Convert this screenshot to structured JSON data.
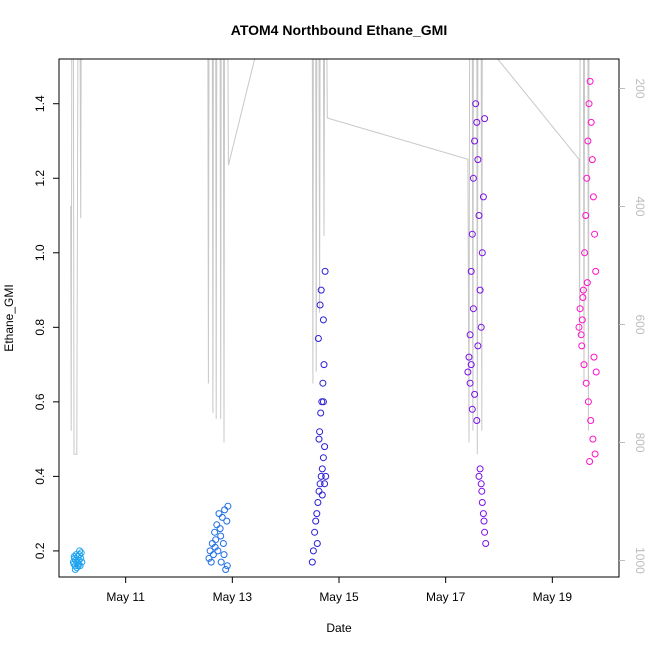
{
  "chart_data": {
    "type": "scatter",
    "title": "ATOM4 Northbound Ethane_GMI",
    "xlabel": "Date",
    "ylabel": "Ethane_GMI",
    "xlim": [
      "2018-05-09T18:00",
      "2018-05-20T06:00"
    ],
    "ylim": [
      0.13,
      1.52
    ],
    "x_ticks": [
      "May 11",
      "May 13",
      "May 15",
      "May 17",
      "May 19"
    ],
    "x_tick_dates": [
      "2018-05-11",
      "2018-05-13",
      "2018-05-15",
      "2018-05-17",
      "2018-05-19"
    ],
    "y_ticks": [
      "0.2",
      "0.4",
      "0.6",
      "0.8",
      "1.0",
      "1.2",
      "1.4"
    ],
    "y_tick_values": [
      0.2,
      0.4,
      0.6,
      0.8,
      1.0,
      1.2,
      1.4
    ],
    "y2_ticks": [
      "200",
      "400",
      "600",
      "800",
      "1000"
    ],
    "y2_tick_values": [
      200,
      400,
      600,
      800,
      1000
    ],
    "y2_lim": [
      1028,
      150
    ],
    "y2_color": "#bdbdbd",
    "series_colors": [
      "#1ea3f0",
      "#1f6fe6",
      "#2b1fd6",
      "#7a10e8",
      "#ff10c8"
    ],
    "clusters": [
      {
        "color": "#1ea3f0",
        "points": [
          [
            "2018-05-10T00:30",
            0.17
          ],
          [
            "2018-05-10T00:45",
            0.165
          ],
          [
            "2018-05-10T01:00",
            0.18
          ],
          [
            "2018-05-10T01:15",
            0.16
          ],
          [
            "2018-05-10T01:30",
            0.175
          ],
          [
            "2018-05-10T01:45",
            0.19
          ],
          [
            "2018-05-10T02:00",
            0.155
          ],
          [
            "2018-05-10T02:15",
            0.17
          ],
          [
            "2018-05-10T02:30",
            0.185
          ],
          [
            "2018-05-10T02:45",
            0.165
          ],
          [
            "2018-05-10T03:00",
            0.175
          ],
          [
            "2018-05-10T03:15",
            0.2
          ],
          [
            "2018-05-10T03:30",
            0.16
          ],
          [
            "2018-05-10T03:45",
            0.18
          ],
          [
            "2018-05-10T04:00",
            0.195
          ],
          [
            "2018-05-10T04:15",
            0.17
          ],
          [
            "2018-05-10T00:50",
            0.185
          ],
          [
            "2018-05-10T01:20",
            0.15
          ],
          [
            "2018-05-10T02:40",
            0.16
          ],
          [
            "2018-05-10T03:10",
            0.19
          ]
        ]
      },
      {
        "color": "#1f6fe6",
        "points": [
          [
            "2018-05-12T13:30",
            0.18
          ],
          [
            "2018-05-12T14:00",
            0.2
          ],
          [
            "2018-05-12T14:30",
            0.17
          ],
          [
            "2018-05-12T15:00",
            0.22
          ],
          [
            "2018-05-12T15:30",
            0.19
          ],
          [
            "2018-05-12T16:00",
            0.25
          ],
          [
            "2018-05-12T16:30",
            0.23
          ],
          [
            "2018-05-12T17:00",
            0.27
          ],
          [
            "2018-05-12T17:30",
            0.2
          ],
          [
            "2018-05-12T18:00",
            0.3
          ],
          [
            "2018-05-12T18:30",
            0.26
          ],
          [
            "2018-05-12T19:00",
            0.17
          ],
          [
            "2018-05-12T19:30",
            0.29
          ],
          [
            "2018-05-12T20:00",
            0.22
          ],
          [
            "2018-05-12T20:30",
            0.31
          ],
          [
            "2018-05-12T21:00",
            0.15
          ],
          [
            "2018-05-12T21:30",
            0.28
          ],
          [
            "2018-05-12T22:00",
            0.32
          ],
          [
            "2018-05-12T16:15",
            0.21
          ],
          [
            "2018-05-12T18:45",
            0.24
          ],
          [
            "2018-05-12T20:15",
            0.19
          ],
          [
            "2018-05-12T21:45",
            0.16
          ]
        ]
      },
      {
        "color": "#2b1fd6",
        "points": [
          [
            "2018-05-14T12:00",
            0.17
          ],
          [
            "2018-05-14T12:30",
            0.2
          ],
          [
            "2018-05-14T13:00",
            0.25
          ],
          [
            "2018-05-14T13:30",
            0.28
          ],
          [
            "2018-05-14T14:00",
            0.3
          ],
          [
            "2018-05-14T14:30",
            0.33
          ],
          [
            "2018-05-14T15:00",
            0.36
          ],
          [
            "2018-05-14T15:30",
            0.38
          ],
          [
            "2018-05-14T16:00",
            0.4
          ],
          [
            "2018-05-14T16:30",
            0.42
          ],
          [
            "2018-05-14T17:00",
            0.45
          ],
          [
            "2018-05-14T17:30",
            0.48
          ],
          [
            "2018-05-14T15:15",
            0.52
          ],
          [
            "2018-05-14T15:45",
            0.57
          ],
          [
            "2018-05-14T16:15",
            0.6
          ],
          [
            "2018-05-14T16:45",
            0.65
          ],
          [
            "2018-05-14T17:15",
            0.7
          ],
          [
            "2018-05-14T14:45",
            0.77
          ],
          [
            "2018-05-14T15:30",
            0.86
          ],
          [
            "2018-05-14T16:00",
            0.9
          ],
          [
            "2018-05-14T17:00",
            0.82
          ],
          [
            "2018-05-14T17:45",
            0.95
          ],
          [
            "2018-05-14T16:30",
            0.35
          ],
          [
            "2018-05-14T17:30",
            0.38
          ],
          [
            "2018-05-14T18:00",
            0.4
          ],
          [
            "2018-05-14T14:15",
            0.22
          ],
          [
            "2018-05-14T15:00",
            0.5
          ],
          [
            "2018-05-14T17:00",
            0.6
          ]
        ]
      },
      {
        "color": "#7a10e8",
        "points": [
          [
            "2018-05-17T10:00",
            0.68
          ],
          [
            "2018-05-17T10:30",
            0.72
          ],
          [
            "2018-05-17T11:00",
            0.78
          ],
          [
            "2018-05-17T11:30",
            0.95
          ],
          [
            "2018-05-17T12:00",
            1.05
          ],
          [
            "2018-05-17T12:30",
            1.2
          ],
          [
            "2018-05-17T13:00",
            1.3
          ],
          [
            "2018-05-17T13:30",
            1.4
          ],
          [
            "2018-05-17T14:00",
            1.35
          ],
          [
            "2018-05-17T14:30",
            1.25
          ],
          [
            "2018-05-17T15:00",
            1.1
          ],
          [
            "2018-05-17T15:30",
            0.9
          ],
          [
            "2018-05-17T16:00",
            0.8
          ],
          [
            "2018-05-17T16:30",
            1.0
          ],
          [
            "2018-05-17T17:00",
            1.15
          ],
          [
            "2018-05-17T17:30",
            1.36
          ],
          [
            "2018-05-17T11:00",
            0.65
          ],
          [
            "2018-05-17T12:00",
            0.58
          ],
          [
            "2018-05-17T13:00",
            0.62
          ],
          [
            "2018-05-17T14:00",
            0.55
          ],
          [
            "2018-05-17T11:30",
            0.7
          ],
          [
            "2018-05-17T12:30",
            0.85
          ],
          [
            "2018-05-17T14:30",
            0.75
          ],
          [
            "2018-05-17T15:30",
            0.42
          ],
          [
            "2018-05-17T16:00",
            0.38
          ],
          [
            "2018-05-17T16:30",
            0.33
          ],
          [
            "2018-05-17T17:00",
            0.3
          ],
          [
            "2018-05-17T17:30",
            0.25
          ],
          [
            "2018-05-17T18:00",
            0.22
          ],
          [
            "2018-05-17T15:00",
            0.4
          ],
          [
            "2018-05-17T16:15",
            0.36
          ],
          [
            "2018-05-17T17:15",
            0.28
          ]
        ]
      },
      {
        "color": "#ff10c8",
        "points": [
          [
            "2018-05-19T12:00",
            0.8
          ],
          [
            "2018-05-19T12:30",
            0.85
          ],
          [
            "2018-05-19T13:00",
            0.78
          ],
          [
            "2018-05-19T13:30",
            0.82
          ],
          [
            "2018-05-19T14:00",
            0.9
          ],
          [
            "2018-05-19T14:30",
            1.0
          ],
          [
            "2018-05-19T15:00",
            1.1
          ],
          [
            "2018-05-19T15:30",
            1.2
          ],
          [
            "2018-05-19T16:00",
            1.3
          ],
          [
            "2018-05-19T16:30",
            1.4
          ],
          [
            "2018-05-19T17:00",
            1.46
          ],
          [
            "2018-05-19T17:30",
            1.35
          ],
          [
            "2018-05-19T18:00",
            1.25
          ],
          [
            "2018-05-19T18:30",
            1.15
          ],
          [
            "2018-05-19T19:00",
            1.05
          ],
          [
            "2018-05-19T19:30",
            0.95
          ],
          [
            "2018-05-19T13:15",
            0.75
          ],
          [
            "2018-05-19T14:15",
            0.7
          ],
          [
            "2018-05-19T15:15",
            0.65
          ],
          [
            "2018-05-19T16:15",
            0.6
          ],
          [
            "2018-05-19T17:15",
            0.55
          ],
          [
            "2018-05-19T18:15",
            0.5
          ],
          [
            "2018-05-19T19:15",
            0.46
          ],
          [
            "2018-05-19T16:45",
            0.44
          ],
          [
            "2018-05-19T13:45",
            0.88
          ],
          [
            "2018-05-19T15:45",
            0.92
          ],
          [
            "2018-05-19T18:45",
            0.72
          ],
          [
            "2018-05-19T19:45",
            0.68
          ]
        ]
      }
    ],
    "altitude_track": [
      [
        "2018-05-09T23:00",
        400
      ],
      [
        "2018-05-09T23:15",
        400
      ],
      [
        "2018-05-09T23:30",
        780
      ],
      [
        "2018-05-09T23:45",
        120
      ],
      [
        "2018-05-10T00:30",
        120
      ],
      [
        "2018-05-10T00:45",
        820
      ],
      [
        "2018-05-10T02:00",
        820
      ],
      [
        "2018-05-10T02:30",
        120
      ],
      [
        "2018-05-10T03:30",
        120
      ],
      [
        "2018-05-10T03:45",
        420
      ],
      [
        "2018-05-10T04:00",
        120
      ],
      [
        "2018-05-10T08:00",
        120
      ],
      [
        "2018-05-12T13:00",
        150
      ],
      [
        "2018-05-12T13:15",
        700
      ],
      [
        "2018-05-12T13:30",
        120
      ],
      [
        "2018-05-12T15:00",
        120
      ],
      [
        "2018-05-12T15:15",
        750
      ],
      [
        "2018-05-12T15:30",
        120
      ],
      [
        "2018-05-12T16:30",
        120
      ],
      [
        "2018-05-12T16:45",
        760
      ],
      [
        "2018-05-12T17:00",
        120
      ],
      [
        "2018-05-12T18:30",
        120
      ],
      [
        "2018-05-12T18:45",
        760
      ],
      [
        "2018-05-12T19:00",
        120
      ],
      [
        "2018-05-12T20:00",
        120
      ],
      [
        "2018-05-12T20:15",
        800
      ],
      [
        "2018-05-12T20:30",
        120
      ],
      [
        "2018-05-12T22:00",
        120
      ],
      [
        "2018-05-12T22:15",
        330
      ],
      [
        "2018-05-13T12:00",
        120
      ],
      [
        "2018-05-14T12:00",
        120
      ],
      [
        "2018-05-14T12:15",
        700
      ],
      [
        "2018-05-14T12:30",
        120
      ],
      [
        "2018-05-14T13:30",
        120
      ],
      [
        "2018-05-14T13:45",
        680
      ],
      [
        "2018-05-14T14:00",
        120
      ],
      [
        "2018-05-14T15:00",
        120
      ],
      [
        "2018-05-14T15:15",
        580
      ],
      [
        "2018-05-14T15:30",
        120
      ],
      [
        "2018-05-14T17:00",
        120
      ],
      [
        "2018-05-14T17:15",
        450
      ],
      [
        "2018-05-14T17:30",
        120
      ],
      [
        "2018-05-14T18:30",
        120
      ],
      [
        "2018-05-14T18:45",
        250
      ],
      [
        "2018-05-17T10:00",
        320
      ],
      [
        "2018-05-17T10:30",
        800
      ],
      [
        "2018-05-17T10:45",
        120
      ],
      [
        "2018-05-17T12:00",
        120
      ],
      [
        "2018-05-17T12:15",
        780
      ],
      [
        "2018-05-17T12:30",
        120
      ],
      [
        "2018-05-17T14:00",
        120
      ],
      [
        "2018-05-17T14:15",
        820
      ],
      [
        "2018-05-17T14:30",
        120
      ],
      [
        "2018-05-17T16:00",
        120
      ],
      [
        "2018-05-17T16:15",
        780
      ],
      [
        "2018-05-17T16:30",
        120
      ],
      [
        "2018-05-17T17:00",
        120
      ],
      [
        "2018-05-19T12:00",
        320
      ],
      [
        "2018-05-19T12:15",
        620
      ],
      [
        "2018-05-19T12:30",
        120
      ],
      [
        "2018-05-19T14:00",
        120
      ],
      [
        "2018-05-19T14:15",
        700
      ],
      [
        "2018-05-19T14:30",
        120
      ],
      [
        "2018-05-19T16:00",
        120
      ],
      [
        "2018-05-19T16:15",
        780
      ],
      [
        "2018-05-19T16:30",
        120
      ]
    ]
  }
}
